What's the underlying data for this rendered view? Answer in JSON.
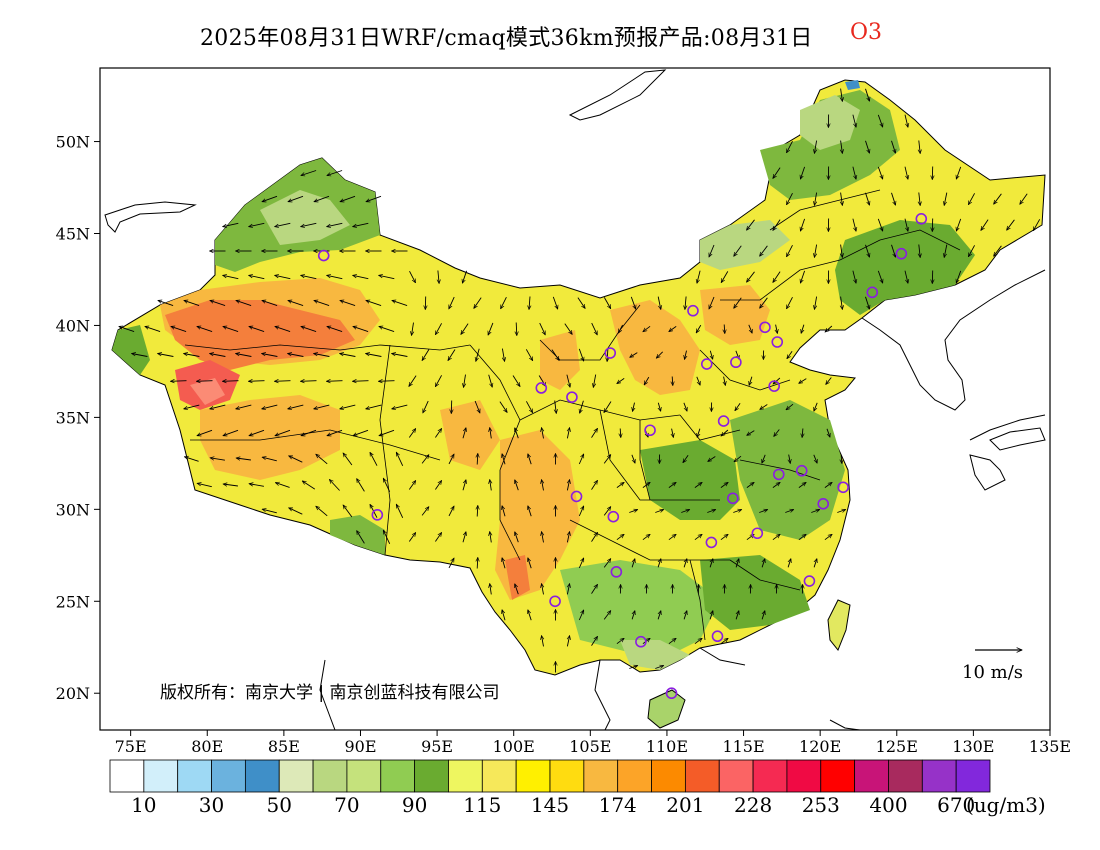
{
  "title": {
    "main": "2025年08月31日WRF/cmaq模式36km预报产品:08月31日",
    "species": "O3"
  },
  "map": {
    "lon_range": [
      73,
      135
    ],
    "lat_range": [
      18,
      54
    ],
    "x_ticks": [
      "75E",
      "80E",
      "85E",
      "90E",
      "95E",
      "100E",
      "105E",
      "110E",
      "115E",
      "120E",
      "125E",
      "130E",
      "135E"
    ],
    "y_ticks": [
      "20N",
      "25N",
      "30N",
      "35N",
      "40N",
      "45N",
      "50N"
    ],
    "copyright": "版权所有：南京大学 | 南京创蓝科技有限公司",
    "wind_scale_label": "10 m/s",
    "colors": {
      "background_land": "#e8f060",
      "ocean": "#ffffff",
      "border": "#000000",
      "station_marker": "#8a1ee0"
    }
  },
  "stations": [
    {
      "lon": 87.6,
      "lat": 43.8
    },
    {
      "lon": 91.1,
      "lat": 29.7
    },
    {
      "lon": 101.8,
      "lat": 36.6
    },
    {
      "lon": 103.8,
      "lat": 36.1
    },
    {
      "lon": 106.3,
      "lat": 38.5
    },
    {
      "lon": 108.9,
      "lat": 34.3
    },
    {
      "lon": 111.7,
      "lat": 40.8
    },
    {
      "lon": 112.6,
      "lat": 37.9
    },
    {
      "lon": 114.5,
      "lat": 38.0
    },
    {
      "lon": 116.4,
      "lat": 39.9
    },
    {
      "lon": 117.2,
      "lat": 39.1
    },
    {
      "lon": 117.0,
      "lat": 36.7
    },
    {
      "lon": 113.7,
      "lat": 34.8
    },
    {
      "lon": 123.4,
      "lat": 41.8
    },
    {
      "lon": 125.3,
      "lat": 43.9
    },
    {
      "lon": 126.6,
      "lat": 45.8
    },
    {
      "lon": 104.1,
      "lat": 30.7
    },
    {
      "lon": 106.5,
      "lat": 29.6
    },
    {
      "lon": 106.7,
      "lat": 26.6
    },
    {
      "lon": 102.7,
      "lat": 25.0
    },
    {
      "lon": 108.3,
      "lat": 22.8
    },
    {
      "lon": 110.3,
      "lat": 20.0
    },
    {
      "lon": 113.3,
      "lat": 23.1
    },
    {
      "lon": 112.9,
      "lat": 28.2
    },
    {
      "lon": 114.3,
      "lat": 30.6
    },
    {
      "lon": 115.9,
      "lat": 28.7
    },
    {
      "lon": 117.3,
      "lat": 31.9
    },
    {
      "lon": 118.8,
      "lat": 32.1
    },
    {
      "lon": 120.2,
      "lat": 30.3
    },
    {
      "lon": 121.5,
      "lat": 31.2
    },
    {
      "lon": 119.3,
      "lat": 26.1
    }
  ],
  "colorbar": {
    "colors": [
      "#ffffff",
      "#d2effa",
      "#9ed9f4",
      "#6bb2de",
      "#3f8fc8",
      "#dde9b8",
      "#b9d780",
      "#c5e27c",
      "#90cc52",
      "#6aab30",
      "#eef660",
      "#f6e85a",
      "#fff000",
      "#ffdc10",
      "#f8b840",
      "#fca428",
      "#fc8a00",
      "#f45c28",
      "#fb6464",
      "#f52a52",
      "#f00a44",
      "#ff0000",
      "#c81478",
      "#a82a5e",
      "#9632c8",
      "#8228dc"
    ],
    "labels": [
      "10",
      "30",
      "50",
      "70",
      "90",
      "115",
      "145",
      "174",
      "201",
      "228",
      "253",
      "400",
      "670"
    ],
    "unit": "(ug/m3)"
  }
}
